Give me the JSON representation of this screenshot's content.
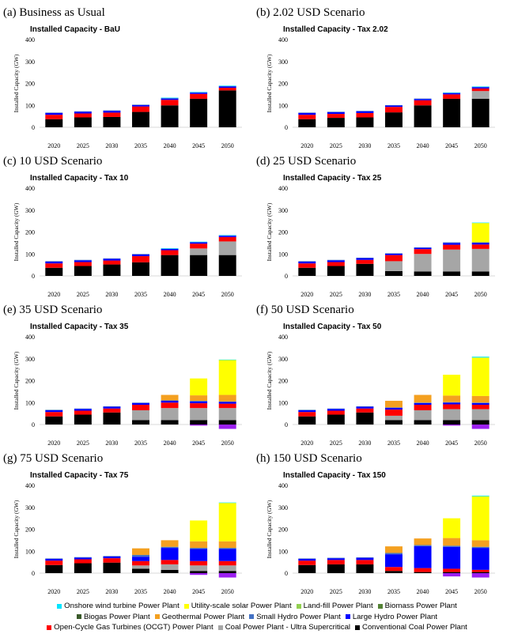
{
  "series": [
    {
      "key": "coal",
      "name": "Conventional Coal Power Plant",
      "color": "#000000"
    },
    {
      "key": "usc",
      "name": "Coal Power Plant - Ultra Supercritical",
      "color": "#a6a6a6"
    },
    {
      "key": "ocgt",
      "name": "Open-Cycle Gas Turbines (OCGT) Power Plant",
      "color": "#ff0000"
    },
    {
      "key": "hydro_l",
      "name": "Large Hydro Power Plant",
      "color": "#0000ff"
    },
    {
      "key": "hydro_s",
      "name": "Small Hydro Power Plant",
      "color": "#4472c4"
    },
    {
      "key": "geo",
      "name": "Geothermal Power Plant",
      "color": "#f4a020"
    },
    {
      "key": "biogas",
      "name": "Biogas Power Plant",
      "color": "#3a5a2a"
    },
    {
      "key": "biomass",
      "name": "Biomass Power Plant",
      "color": "#548235"
    },
    {
      "key": "landfill",
      "name": "Land-fill Power Plant",
      "color": "#92d050"
    },
    {
      "key": "solar",
      "name": "Utility-scale solar Power Plant",
      "color": "#ffff00"
    },
    {
      "key": "wind",
      "name": "Onshore wind turbine Power Plant",
      "color": "#00e5ff"
    },
    {
      "key": "neg",
      "name": "",
      "color": "#9b1ff0"
    }
  ],
  "legend": {
    "rows": [
      [
        "wind",
        "solar",
        "landfill",
        "biomass"
      ],
      [
        "biogas",
        "geo",
        "hydro_s",
        "hydro_l"
      ],
      [
        "ocgt",
        "usc",
        "coal"
      ]
    ]
  },
  "chart_data": [
    {
      "panel_title": "(a) Business as Usual",
      "title": "Installed Capacity - BaU",
      "type": "bar",
      "stacked": true,
      "ylabel": "Installed Capacity (GW)",
      "ylim": [
        0,
        400
      ],
      "yticks": [
        0,
        100,
        200,
        300,
        400
      ],
      "categories": [
        "2020",
        "2025",
        "2030",
        "2035",
        "2040",
        "2045",
        "2050"
      ],
      "values": {
        "coal": [
          37,
          45,
          47,
          70,
          100,
          130,
          168
        ],
        "usc": [
          0,
          0,
          0,
          0,
          0,
          0,
          0
        ],
        "ocgt": [
          20,
          18,
          20,
          25,
          25,
          22,
          12
        ],
        "hydro_l": [
          8,
          8,
          8,
          6,
          6,
          6,
          6
        ],
        "hydro_s": [
          2,
          2,
          2,
          2,
          3,
          2,
          2
        ],
        "solar": [
          0,
          0,
          0,
          0,
          0,
          0,
          0
        ],
        "wind": [
          0,
          0,
          0,
          0,
          1,
          1,
          2
        ],
        "geo": [
          0,
          0,
          0,
          0,
          0,
          0,
          0
        ],
        "neg": [
          0,
          0,
          0,
          0,
          0,
          0,
          0
        ]
      }
    },
    {
      "panel_title": "(b) 2.02 USD Scenario",
      "title": "Installed Capacity - Tax 2.02",
      "type": "bar",
      "stacked": true,
      "ylabel": "Installed Capacity (GW)",
      "ylim": [
        0,
        400
      ],
      "yticks": [
        0,
        100,
        200,
        300,
        400
      ],
      "categories": [
        "2020",
        "2025",
        "2030",
        "2035",
        "2040",
        "2045",
        "2050"
      ],
      "values": {
        "coal": [
          37,
          43,
          45,
          68,
          100,
          130,
          130
        ],
        "usc": [
          0,
          0,
          0,
          0,
          0,
          0,
          35
        ],
        "ocgt": [
          20,
          18,
          20,
          25,
          23,
          20,
          12
        ],
        "hydro_l": [
          8,
          8,
          8,
          6,
          6,
          6,
          6
        ],
        "hydro_s": [
          2,
          2,
          2,
          2,
          2,
          2,
          2
        ],
        "solar": [
          0,
          0,
          0,
          0,
          0,
          0,
          0
        ],
        "wind": [
          0,
          0,
          0,
          0,
          0,
          1,
          1
        ],
        "geo": [
          0,
          0,
          0,
          0,
          0,
          0,
          0
        ],
        "neg": [
          0,
          0,
          0,
          0,
          0,
          0,
          0
        ]
      }
    },
    {
      "panel_title": "(c) 10 USD Scenario",
      "title": "Installed Capacity - Tax 10",
      "type": "bar",
      "stacked": true,
      "ylabel": "Installed Capacity (GW)",
      "ylim": [
        0,
        400
      ],
      "yticks": [
        0,
        100,
        200,
        300,
        400
      ],
      "categories": [
        "2020",
        "2025",
        "2030",
        "2035",
        "2040",
        "2045",
        "2050"
      ],
      "values": {
        "coal": [
          37,
          45,
          52,
          62,
          95,
          95,
          95
        ],
        "usc": [
          0,
          0,
          0,
          0,
          0,
          30,
          62
        ],
        "ocgt": [
          20,
          18,
          18,
          28,
          22,
          22,
          20
        ],
        "hydro_l": [
          8,
          8,
          8,
          8,
          6,
          6,
          6
        ],
        "hydro_s": [
          2,
          2,
          2,
          2,
          2,
          2,
          2
        ],
        "solar": [
          0,
          0,
          0,
          0,
          0,
          0,
          0
        ],
        "wind": [
          0,
          0,
          0,
          0,
          1,
          1,
          1
        ],
        "geo": [
          0,
          0,
          0,
          0,
          0,
          0,
          0
        ],
        "neg": [
          0,
          0,
          0,
          0,
          0,
          0,
          0
        ]
      }
    },
    {
      "panel_title": "(d) 25 USD Scenario",
      "title": "Installed Capacity - Tax 25",
      "type": "bar",
      "stacked": true,
      "ylabel": "Installed Capacity (GW)",
      "ylim": [
        0,
        400
      ],
      "yticks": [
        0,
        100,
        200,
        300,
        400
      ],
      "categories": [
        "2020",
        "2025",
        "2030",
        "2035",
        "2040",
        "2045",
        "2050"
      ],
      "values": {
        "coal": [
          37,
          45,
          55,
          22,
          20,
          20,
          20
        ],
        "usc": [
          0,
          0,
          0,
          45,
          80,
          100,
          103
        ],
        "ocgt": [
          20,
          18,
          18,
          28,
          22,
          22,
          20
        ],
        "hydro_l": [
          8,
          8,
          8,
          6,
          6,
          8,
          8
        ],
        "hydro_s": [
          2,
          2,
          2,
          2,
          2,
          3,
          2
        ],
        "solar": [
          0,
          0,
          0,
          0,
          0,
          0,
          88
        ],
        "wind": [
          0,
          0,
          0,
          0,
          0,
          0,
          2
        ],
        "geo": [
          0,
          0,
          0,
          0,
          0,
          0,
          0
        ],
        "neg": [
          0,
          0,
          0,
          0,
          0,
          0,
          0
        ]
      }
    },
    {
      "panel_title": "(e) 35 USD Scenario",
      "title": "Installed Capacity - Tax 35",
      "type": "bar",
      "stacked": true,
      "ylabel": "Installed Capacity (GW)",
      "ylim": [
        -20,
        400
      ],
      "yticks": [
        0,
        100,
        200,
        300,
        400
      ],
      "categories": [
        "2020",
        "2025",
        "2030",
        "2035",
        "2040",
        "2045",
        "2050"
      ],
      "values": {
        "coal": [
          37,
          45,
          55,
          20,
          20,
          20,
          20
        ],
        "usc": [
          0,
          0,
          0,
          45,
          55,
          55,
          55
        ],
        "ocgt": [
          20,
          18,
          18,
          25,
          25,
          22,
          20
        ],
        "hydro_l": [
          8,
          8,
          8,
          8,
          8,
          8,
          8
        ],
        "hydro_s": [
          2,
          2,
          2,
          2,
          2,
          3,
          2
        ],
        "geo": [
          0,
          0,
          0,
          0,
          25,
          25,
          30
        ],
        "solar": [
          0,
          0,
          0,
          0,
          0,
          77,
          160
        ],
        "wind": [
          0,
          0,
          0,
          0,
          0,
          0,
          1
        ],
        "neg": [
          0,
          0,
          0,
          0,
          0,
          -5,
          -20
        ]
      }
    },
    {
      "panel_title": "(f) 50 USD Scenario",
      "title": "Installed Capacity - Tax 50",
      "type": "bar",
      "stacked": true,
      "ylabel": "Installed Capacity (GW)",
      "ylim": [
        -20,
        400
      ],
      "yticks": [
        0,
        100,
        200,
        300,
        400
      ],
      "categories": [
        "2020",
        "2025",
        "2030",
        "2035",
        "2040",
        "2045",
        "2050"
      ],
      "values": {
        "coal": [
          37,
          45,
          55,
          20,
          20,
          20,
          20
        ],
        "usc": [
          0,
          0,
          0,
          20,
          45,
          50,
          50
        ],
        "ocgt": [
          20,
          18,
          18,
          28,
          25,
          22,
          20
        ],
        "hydro_l": [
          8,
          8,
          8,
          8,
          8,
          8,
          8
        ],
        "hydro_s": [
          2,
          2,
          2,
          2,
          2,
          2,
          2
        ],
        "geo": [
          0,
          0,
          0,
          30,
          35,
          30,
          30
        ],
        "solar": [
          0,
          0,
          0,
          0,
          0,
          95,
          175
        ],
        "wind": [
          0,
          0,
          0,
          0,
          0,
          0,
          4
        ],
        "neg": [
          0,
          0,
          0,
          0,
          0,
          -5,
          -20
        ]
      }
    },
    {
      "panel_title": "(g) 75 USD Scenario",
      "title": "Installed Capacity - Tax 75",
      "type": "bar",
      "stacked": true,
      "ylabel": "Installed Capacity (GW)",
      "ylim": [
        -20,
        400
      ],
      "yticks": [
        0,
        100,
        200,
        300,
        400
      ],
      "categories": [
        "2020",
        "2025",
        "2030",
        "2035",
        "2040",
        "2045",
        "2050"
      ],
      "values": {
        "coal": [
          37,
          45,
          48,
          20,
          15,
          10,
          10
        ],
        "usc": [
          0,
          0,
          0,
          15,
          25,
          25,
          25
        ],
        "ocgt": [
          20,
          18,
          20,
          20,
          20,
          20,
          20
        ],
        "hydro_l": [
          8,
          8,
          8,
          20,
          55,
          55,
          55
        ],
        "hydro_s": [
          2,
          2,
          2,
          8,
          5,
          5,
          5
        ],
        "geo": [
          0,
          0,
          0,
          30,
          30,
          30,
          30
        ],
        "solar": [
          0,
          0,
          0,
          0,
          0,
          95,
          175
        ],
        "wind": [
          0,
          0,
          0,
          0,
          0,
          0,
          2
        ],
        "neg": [
          0,
          0,
          0,
          0,
          0,
          -8,
          -20
        ]
      }
    },
    {
      "panel_title": "(h) 150 USD Scenario",
      "title": "Installed Capacity - Tax 150",
      "type": "bar",
      "stacked": true,
      "ylabel": "Installed Capacity (GW)",
      "ylim": [
        -20,
        400
      ],
      "yticks": [
        0,
        100,
        200,
        300,
        400
      ],
      "categories": [
        "2020",
        "2025",
        "2030",
        "2035",
        "2040",
        "2045",
        "2050"
      ],
      "values": {
        "coal": [
          37,
          40,
          40,
          10,
          5,
          5,
          5
        ],
        "usc": [
          0,
          0,
          0,
          0,
          0,
          0,
          0
        ],
        "ocgt": [
          20,
          20,
          20,
          18,
          18,
          15,
          10
        ],
        "hydro_l": [
          8,
          8,
          10,
          58,
          100,
          100,
          100
        ],
        "hydro_s": [
          2,
          2,
          2,
          6,
          5,
          5,
          5
        ],
        "geo": [
          0,
          0,
          0,
          30,
          30,
          35,
          30
        ],
        "solar": [
          0,
          0,
          0,
          0,
          0,
          90,
          200
        ],
        "wind": [
          0,
          0,
          0,
          0,
          0,
          0,
          3
        ],
        "neg": [
          0,
          0,
          0,
          0,
          0,
          -15,
          -20
        ]
      }
    }
  ]
}
